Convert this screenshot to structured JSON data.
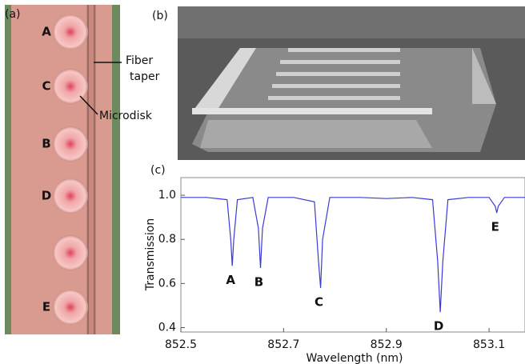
{
  "panel_a": {
    "label": "(a)",
    "disk_labels": [
      "A",
      "C",
      "B",
      "D",
      "E"
    ],
    "fiber_label": [
      "Fiber",
      "taper"
    ],
    "disk_label": "Microdisk"
  },
  "panel_b": {
    "label": "(b)"
  },
  "panel_c": {
    "label": "(c)"
  },
  "chart_data": {
    "type": "line",
    "x_label": "Wavelength (nm)",
    "y_label": "Transmission",
    "x": [
      852.5,
      852.55,
      852.59,
      852.597,
      852.6,
      852.603,
      852.61,
      852.64,
      852.651,
      852.655,
      852.659,
      852.67,
      852.72,
      852.76,
      852.768,
      852.772,
      852.776,
      852.79,
      852.85,
      852.9,
      852.95,
      852.99,
      853.0,
      853.005,
      853.01,
      853.02,
      853.06,
      853.1,
      853.112,
      853.115,
      853.118,
      853.13,
      853.17
    ],
    "series": [
      {
        "name": "Transmission",
        "color": "#3a3ad8",
        "values": [
          0.99,
          0.99,
          0.98,
          0.8,
          0.68,
          0.8,
          0.98,
          0.99,
          0.85,
          0.67,
          0.85,
          0.99,
          0.99,
          0.97,
          0.7,
          0.58,
          0.8,
          0.99,
          0.99,
          0.985,
          0.99,
          0.98,
          0.7,
          0.47,
          0.7,
          0.98,
          0.99,
          0.99,
          0.95,
          0.92,
          0.95,
          0.99,
          0.99
        ]
      }
    ],
    "annotations": [
      {
        "text": "A",
        "x": 852.6,
        "y": 0.68
      },
      {
        "text": "B",
        "x": 852.655,
        "y": 0.67
      },
      {
        "text": "C",
        "x": 852.772,
        "y": 0.58
      },
      {
        "text": "D",
        "x": 853.005,
        "y": 0.47
      },
      {
        "text": "E",
        "x": 853.115,
        "y": 0.92
      }
    ],
    "xlim": [
      852.5,
      853.17
    ],
    "ylim": [
      0.38,
      1.08
    ],
    "xticks": [
      852.5,
      852.7,
      852.9,
      853.1
    ],
    "yticks": [
      0.4,
      0.6,
      0.8,
      {
        "value": 1,
        "label": "1.0"
      }
    ]
  }
}
